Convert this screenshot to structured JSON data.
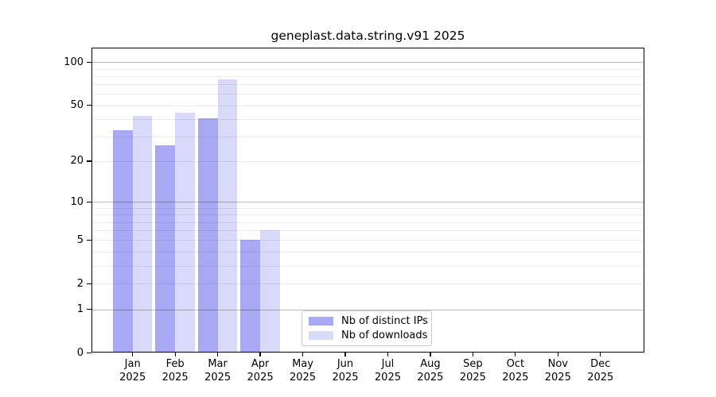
{
  "chart_data": {
    "type": "bar",
    "title": "geneplast.data.string.v91 2025",
    "y_scale": "log10(1+value)",
    "categories": [
      "Jan",
      "Feb",
      "Mar",
      "Apr",
      "May",
      "Jun",
      "Jul",
      "Aug",
      "Sep",
      "Oct",
      "Nov",
      "Dec"
    ],
    "category_sublabel": "2025",
    "series": [
      {
        "name": "Nb of distinct IPs",
        "color": "#a8a8f4",
        "values": [
          33,
          26,
          40,
          5,
          0,
          0,
          0,
          0,
          0,
          0,
          0,
          0
        ]
      },
      {
        "name": "Nb of downloads",
        "color": "#d9d9f9",
        "values": [
          42,
          44,
          75,
          6,
          0,
          0,
          0,
          0,
          0,
          0,
          0,
          0
        ]
      }
    ],
    "y_ticks": [
      0,
      1,
      2,
      5,
      10,
      20,
      50,
      100
    ],
    "y_major_gridlines": [
      1,
      10,
      100
    ],
    "y_minor_gridlines": [
      2,
      3,
      4,
      5,
      6,
      7,
      8,
      9,
      20,
      30,
      40,
      50,
      60,
      70,
      80,
      90
    ],
    "ylim": [
      0,
      130
    ],
    "grid": "horizontal only",
    "legend_position": "lower center"
  },
  "legend": {
    "items": [
      {
        "label": "Nb of distinct IPs",
        "color": "#a8a8f4"
      },
      {
        "label": "Nb of downloads",
        "color": "#d9d9f9"
      }
    ]
  }
}
